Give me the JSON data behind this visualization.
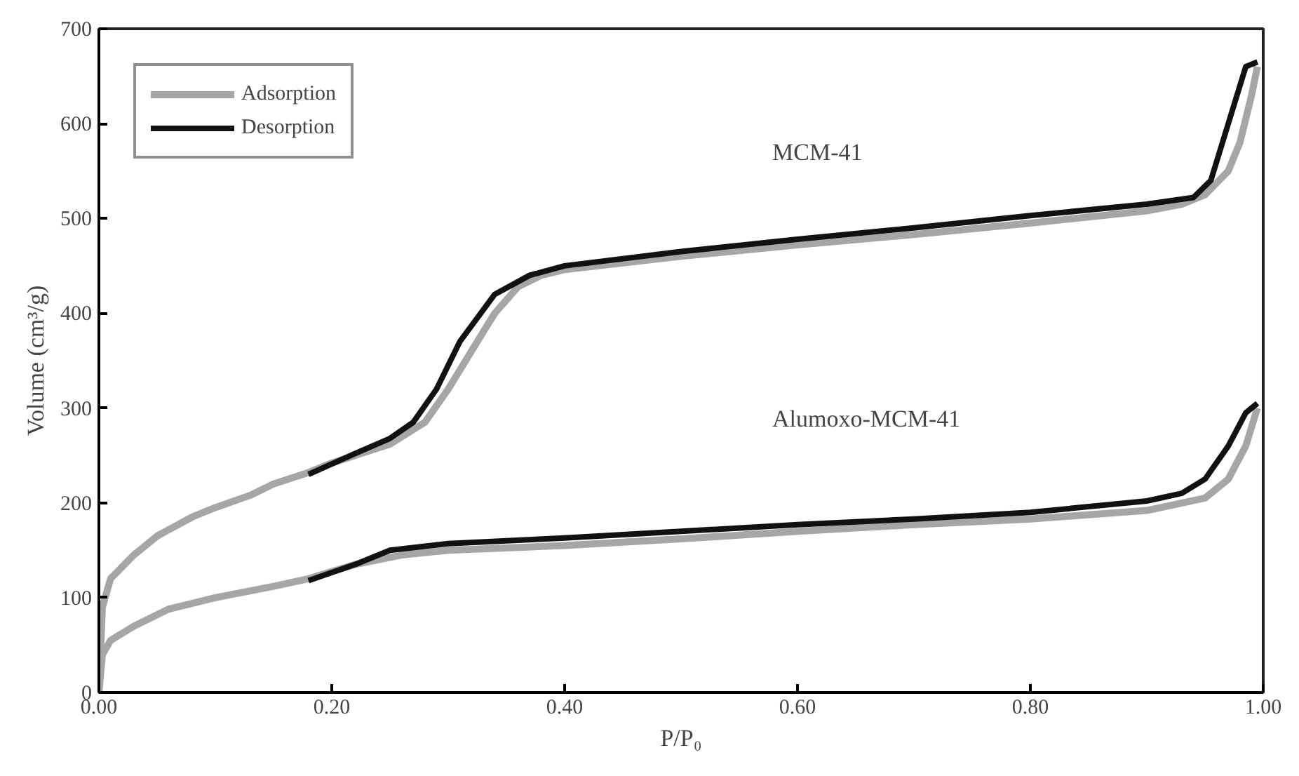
{
  "chart_data": {
    "type": "line",
    "xlabel": "P/P₀",
    "ylabel": "Volume (cm³/g)",
    "xlim": [
      0,
      1.0
    ],
    "ylim": [
      0,
      700
    ],
    "xticks": [
      {
        "value": 0,
        "label": "0.00"
      },
      {
        "value": 0.2,
        "label": "0.20"
      },
      {
        "value": 0.4,
        "label": "0.40"
      },
      {
        "value": 0.6,
        "label": "0.60"
      },
      {
        "value": 0.8,
        "label": "0.80"
      },
      {
        "value": 1.0,
        "label": "1.00"
      }
    ],
    "yticks": [
      0,
      100,
      200,
      300,
      400,
      500,
      600,
      700
    ],
    "grid": false,
    "legend": "top left",
    "marker": "none",
    "line_style": "solid",
    "series": [
      {
        "name": "Adsorption",
        "color": "#a6a6a6",
        "x": [
          0,
          0.003,
          0.01,
          0.03,
          0.05,
          0.08,
          0.1,
          0.13,
          0.15,
          0.18,
          0.2,
          0.25,
          0.28,
          0.3,
          0.32,
          0.34,
          0.36,
          0.38,
          0.4,
          0.5,
          0.6,
          0.7,
          0.8,
          0.9,
          0.93,
          0.95,
          0.97,
          0.98,
          0.99,
          0.995
        ],
        "values": [
          0,
          90,
          120,
          145,
          165,
          185,
          195,
          208,
          220,
          232,
          242,
          262,
          285,
          320,
          360,
          400,
          428,
          440,
          446,
          460,
          472,
          483,
          495,
          508,
          515,
          525,
          550,
          580,
          630,
          660
        ]
      },
      {
        "name": "Desorption",
        "color": "#111111",
        "x": [
          0.995,
          0.985,
          0.975,
          0.965,
          0.955,
          0.94,
          0.9,
          0.8,
          0.7,
          0.6,
          0.5,
          0.4,
          0.37,
          0.34,
          0.31,
          0.29,
          0.27,
          0.25,
          0.22,
          0.18
        ],
        "values": [
          665,
          660,
          620,
          580,
          540,
          522,
          515,
          503,
          490,
          478,
          465,
          450,
          440,
          420,
          370,
          320,
          285,
          268,
          252,
          230
        ]
      },
      {
        "color": "#a6a6a6",
        "x": [
          0,
          0.003,
          0.01,
          0.03,
          0.06,
          0.1,
          0.15,
          0.18,
          0.22,
          0.26,
          0.3,
          0.4,
          0.5,
          0.6,
          0.7,
          0.8,
          0.9,
          0.95,
          0.97,
          0.985,
          0.995
        ],
        "values": [
          0,
          40,
          55,
          70,
          88,
          100,
          112,
          120,
          135,
          145,
          150,
          155,
          162,
          170,
          177,
          183,
          192,
          205,
          225,
          260,
          300
        ]
      },
      {
        "color": "#111111",
        "x": [
          0.995,
          0.985,
          0.97,
          0.95,
          0.93,
          0.9,
          0.8,
          0.7,
          0.6,
          0.5,
          0.4,
          0.3,
          0.25,
          0.22,
          0.18
        ],
        "values": [
          305,
          295,
          260,
          225,
          210,
          202,
          190,
          183,
          177,
          170,
          163,
          157,
          150,
          135,
          118
        ]
      }
    ],
    "annotations": [
      "MCM-41",
      "Alumoxo-MCM-41"
    ]
  }
}
